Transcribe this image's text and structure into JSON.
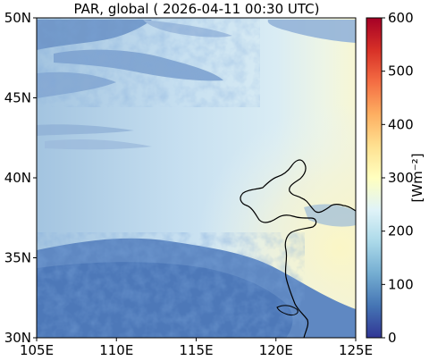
{
  "title": "PAR, global ( 2026-04-11 00:30 UTC)",
  "map": {
    "lon_range": [
      105,
      125
    ],
    "lat_range": [
      30,
      50
    ],
    "x_ticks": [
      {
        "value": 105,
        "label": "105E"
      },
      {
        "value": 110,
        "label": "110E"
      },
      {
        "value": 115,
        "label": "115E"
      },
      {
        "value": 120,
        "label": "120E"
      },
      {
        "value": 125,
        "label": "125E"
      }
    ],
    "y_ticks": [
      {
        "value": 30,
        "label": "30N"
      },
      {
        "value": 35,
        "label": "35N"
      },
      {
        "value": 40,
        "label": "40N"
      },
      {
        "value": 45,
        "label": "45N"
      },
      {
        "value": 50,
        "label": "50N"
      }
    ]
  },
  "colorbar": {
    "label": "[Wm⁻²]",
    "range": [
      0,
      600
    ],
    "colormap": "RdYlBu_r",
    "ticks": [
      {
        "value": 0,
        "label": "0"
      },
      {
        "value": 100,
        "label": "100"
      },
      {
        "value": 200,
        "label": "200"
      },
      {
        "value": 300,
        "label": "300"
      },
      {
        "value": 400,
        "label": "400"
      },
      {
        "value": 500,
        "label": "500"
      },
      {
        "value": 600,
        "label": "600"
      }
    ],
    "colors": [
      "#313695",
      "#4575b4",
      "#74add1",
      "#abd9e9",
      "#e0f3f8",
      "#ffffbf",
      "#fee090",
      "#fdae61",
      "#f46d43",
      "#d73027",
      "#a50026"
    ]
  }
}
